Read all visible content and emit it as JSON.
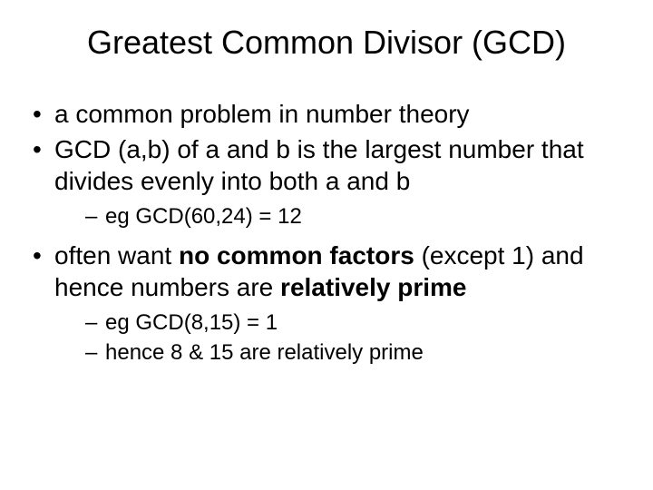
{
  "title": "Greatest Common Divisor (GCD)",
  "bullets": [
    {
      "runs": [
        {
          "t": "a common problem in number theory"
        }
      ]
    },
    {
      "runs": [
        {
          "t": "GCD (a,b) of a and b is the largest number that divides evenly into both a and b"
        }
      ],
      "sub": [
        {
          "runs": [
            {
              "t": "eg GCD(60,24) = 12"
            }
          ]
        }
      ]
    },
    {
      "runs": [
        {
          "t": "often want "
        },
        {
          "t": "no common factors",
          "bold": true
        },
        {
          "t": " (except 1) and hence numbers are "
        },
        {
          "t": "relatively prime",
          "bold": true
        }
      ],
      "sub": [
        {
          "runs": [
            {
              "t": "eg GCD(8,15) = 1"
            }
          ]
        },
        {
          "runs": [
            {
              "t": "hence 8 & 15 are relatively prime"
            }
          ]
        }
      ]
    }
  ],
  "style": {
    "background_color": "#ffffff",
    "text_color": "#000000",
    "title_fontsize": 36,
    "bullet_fontsize": 28,
    "subbullet_fontsize": 24,
    "font_family": "Arial"
  }
}
